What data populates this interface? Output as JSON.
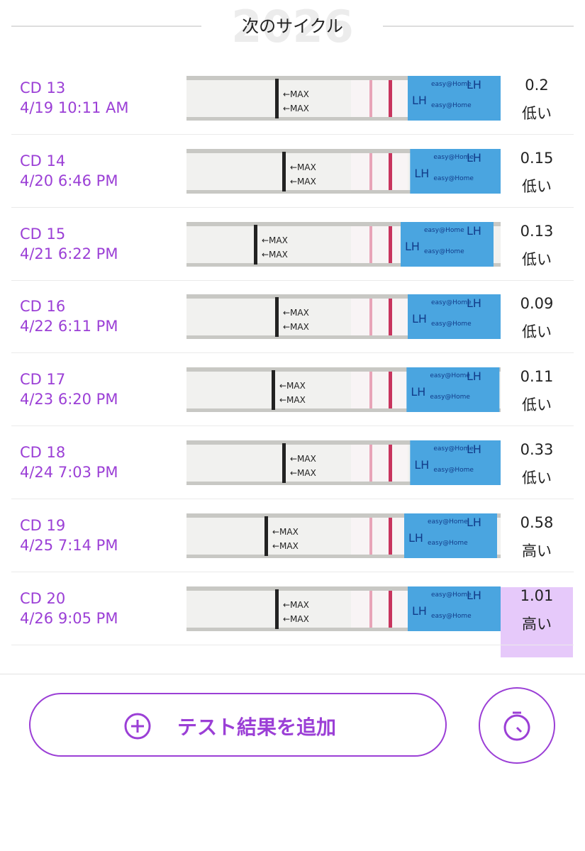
{
  "header": {
    "title": "次のサイクル",
    "watermark": "2026"
  },
  "strip": {
    "max_label": "←MAX",
    "brand": "easy@Home",
    "lh": "LH"
  },
  "rows": [
    {
      "cd": "CD 13",
      "datetime": "4/19 10:11 AM",
      "value": 0.2,
      "level": "低い"
    },
    {
      "cd": "CD 14",
      "datetime": "4/20 6:46 PM",
      "value": 0.15,
      "level": "低い"
    },
    {
      "cd": "CD 15",
      "datetime": "4/21 6:22 PM",
      "value": 0.13,
      "level": "低い"
    },
    {
      "cd": "CD 16",
      "datetime": "4/22 6:11 PM",
      "value": 0.09,
      "level": "低い"
    },
    {
      "cd": "CD 17",
      "datetime": "4/23 6:20 PM",
      "value": 0.11,
      "level": "低い"
    },
    {
      "cd": "CD 18",
      "datetime": "4/24 7:03 PM",
      "value": 0.33,
      "level": "低い"
    },
    {
      "cd": "CD 19",
      "datetime": "4/25 7:14 PM",
      "value": 0.58,
      "level": "高い"
    },
    {
      "cd": "CD 20",
      "datetime": "4/26 9:05 PM",
      "value": 1.01,
      "level": "高い",
      "highlighted": true
    }
  ],
  "add_button": {
    "label": "テスト結果を追加"
  }
}
